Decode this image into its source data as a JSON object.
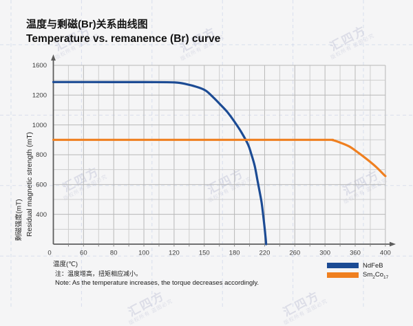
{
  "page": {
    "background": "#f5f5f6",
    "watermark": {
      "line1": "汇四方",
      "line2": "版权所有 盗图必究"
    }
  },
  "title": {
    "zh": "温度与剩磁(Br)关系曲线图",
    "en": "Temperature vs. remanence (Br) curve"
  },
  "chart_data": {
    "type": "line",
    "x_label": "温度(℃)",
    "y_label_zh": "剩磁强度(mT)",
    "y_label_en": "Residual magnetic strength (mT)",
    "x_ticks": [
      0,
      60,
      80,
      100,
      120,
      150,
      180,
      220,
      260,
      300,
      360,
      400
    ],
    "y_ticks": [
      0,
      400,
      600,
      800,
      1000,
      1200,
      1600
    ],
    "axis_note": "tick marks are evenly spaced although printed values are non-linear",
    "grid": true,
    "legend_position": "bottom-right",
    "series": [
      {
        "name": "NdFeB",
        "color": "#1c4b94",
        "points": [
          [
            0,
            1375
          ],
          [
            60,
            1375
          ],
          [
            100,
            1374
          ],
          [
            120,
            1371
          ],
          [
            132,
            1348
          ],
          [
            145,
            1300
          ],
          [
            152,
            1255
          ],
          [
            159,
            1185
          ],
          [
            166,
            1137
          ],
          [
            173,
            1086
          ],
          [
            180,
            1022
          ],
          [
            189,
            952
          ],
          [
            198,
            869
          ],
          [
            202,
            810
          ],
          [
            207,
            722
          ],
          [
            211,
            615
          ],
          [
            216,
            478
          ],
          [
            219,
            305
          ],
          [
            221,
            120
          ],
          [
            222,
            0
          ]
        ]
      },
      {
        "name": "Sm2Co17",
        "color": "#ef7f1f",
        "points": [
          [
            0,
            900
          ],
          [
            100,
            900
          ],
          [
            200,
            900
          ],
          [
            300,
            900
          ],
          [
            315,
            898
          ],
          [
            329,
            883
          ],
          [
            348,
            856
          ],
          [
            364,
            814
          ],
          [
            376,
            768
          ],
          [
            388,
            717
          ],
          [
            398,
            666
          ],
          [
            400,
            657
          ]
        ]
      }
    ]
  },
  "legend": {
    "items": [
      {
        "label": "NdFeB",
        "color": "#1c4b94"
      },
      {
        "label_p1": "Sm",
        "label_s1": "2",
        "label_p2": "Co",
        "label_s2": "17",
        "color": "#ef7f1f"
      }
    ]
  },
  "note": {
    "zh": "注：温度增高，扭矩相应减小。",
    "en": "Note: As the temperature increases, the torque decreases accordingly."
  }
}
